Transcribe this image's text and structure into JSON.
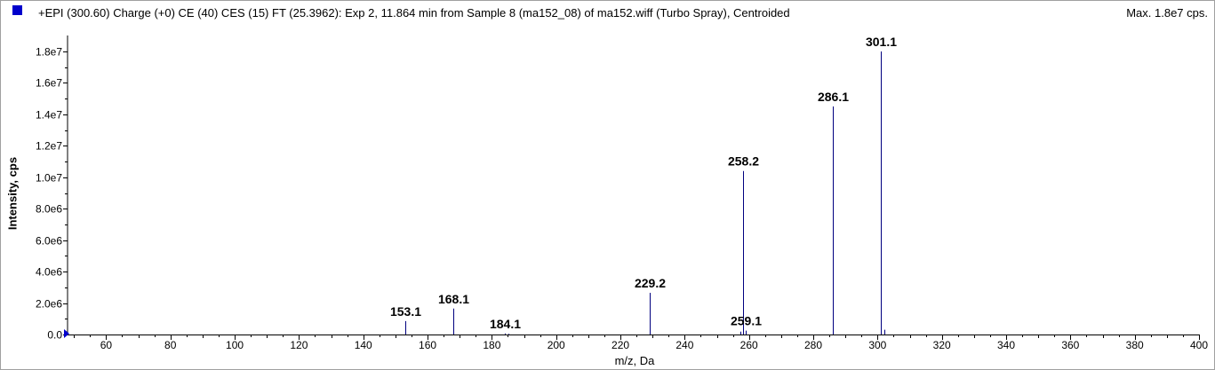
{
  "header": {
    "title": "+EPI (300.60) Charge (+0) CE (40) CES (15) FT (25.3962): Exp 2, 11.864 min from Sample 8 (ma152_08) of ma152.wiff (Turbo Spray), Centroided",
    "max_label": "Max. 1.8e7 cps."
  },
  "chart_data": {
    "type": "bar",
    "xlabel": "m/z, Da",
    "ylabel": "Intensity, cps",
    "xlim": [
      48,
      400
    ],
    "ylim": [
      0,
      18000000
    ],
    "xticks": [
      "60",
      "80",
      "100",
      "120",
      "140",
      "160",
      "180",
      "200",
      "220",
      "240",
      "260",
      "280",
      "300",
      "320",
      "340",
      "360",
      "380",
      "400"
    ],
    "yticks": [
      "0.0",
      "2.0e6",
      "4.0e6",
      "6.0e6",
      "8.0e6",
      "1.0e7",
      "1.2e7",
      "1.4e7",
      "1.6e7",
      "1.8e7"
    ],
    "peaks": [
      {
        "mz": 153.1,
        "intensity": 850000,
        "label": "153.1"
      },
      {
        "mz": 168.1,
        "intensity": 1650000,
        "label": "168.1"
      },
      {
        "mz": 184.1,
        "intensity": 60000,
        "label": "184.1"
      },
      {
        "mz": 229.2,
        "intensity": 2650000,
        "label": "229.2"
      },
      {
        "mz": 258.2,
        "intensity": 10400000,
        "label": "258.2"
      },
      {
        "mz": 259.1,
        "intensity": 250000,
        "label": "259.1"
      },
      {
        "mz": 286.1,
        "intensity": 14500000,
        "label": "286.1"
      },
      {
        "mz": 301.1,
        "intensity": 18000000,
        "label": "301.1"
      }
    ],
    "minor_peaks": [
      {
        "mz": 257.2,
        "intensity": 180000
      },
      {
        "mz": 302.1,
        "intensity": 300000
      },
      {
        "mz": 185.1,
        "intensity": 40000
      }
    ],
    "line_color": "#00007f",
    "grid": false
  }
}
